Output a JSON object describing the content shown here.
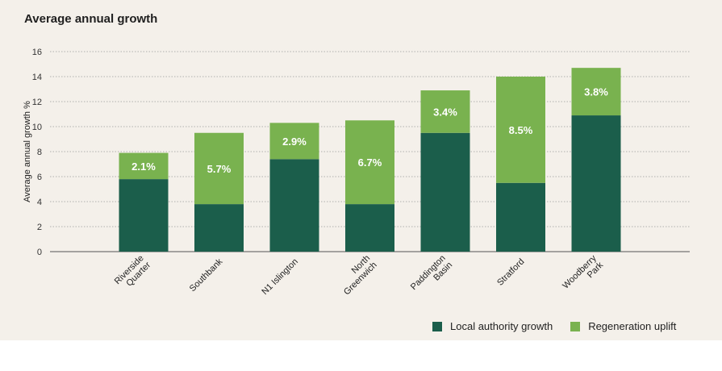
{
  "chart_data": {
    "type": "bar",
    "stacked": true,
    "title": "Average annual growth",
    "ylabel": "Average annual growth %",
    "xlabel": "",
    "ylim": [
      0,
      16
    ],
    "yticks": [
      0,
      2,
      4,
      6,
      8,
      10,
      12,
      14,
      16
    ],
    "grid": true,
    "legend_position": "bottom-right",
    "categories": [
      [
        "Riverside",
        "Quarter"
      ],
      [
        "Southbank"
      ],
      [
        "N1 Islington"
      ],
      [
        "North",
        "Greenwich"
      ],
      [
        "Paddington",
        "Basin"
      ],
      [
        "Stratford"
      ],
      [
        "Woodberry",
        "Park"
      ]
    ],
    "series": [
      {
        "name": "Local authority growth",
        "color": "#1b5e4b",
        "values": [
          5.8,
          3.8,
          7.4,
          3.8,
          9.5,
          5.5,
          10.9
        ]
      },
      {
        "name": "Regeneration uplift",
        "color": "#79b24f",
        "values": [
          2.1,
          5.7,
          2.9,
          6.7,
          3.4,
          8.5,
          3.8
        ]
      }
    ],
    "data_labels": [
      "2.1%",
      "5.7%",
      "2.9%",
      "6.7%",
      "3.4%",
      "8.5%",
      "3.8%"
    ]
  }
}
